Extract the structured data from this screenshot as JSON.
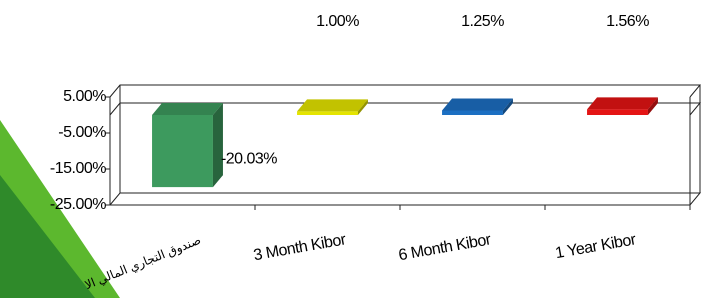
{
  "chart_data": {
    "type": "bar3d",
    "categories": [
      "صندوق التجاري المالي الا",
      "3 Month Kibor",
      "6 Month Kibor",
      "1 Year Kibor"
    ],
    "values": [
      -20.03,
      1.0,
      1.25,
      1.56
    ],
    "value_labels": [
      "-20.03%",
      "1.00%",
      "1.25%",
      "1.56%"
    ],
    "colors": [
      "#3d9a5e",
      "#e4e400",
      "#1c6fc2",
      "#e41414"
    ],
    "ylim": [
      -25,
      5
    ],
    "yticks": [
      {
        "value": 5,
        "label": "5.00%"
      },
      {
        "value": -5,
        "label": "-5.00%"
      },
      {
        "value": -15,
        "label": "-15.00%"
      },
      {
        "value": -25,
        "label": "-25.00%"
      }
    ],
    "grid": false
  }
}
